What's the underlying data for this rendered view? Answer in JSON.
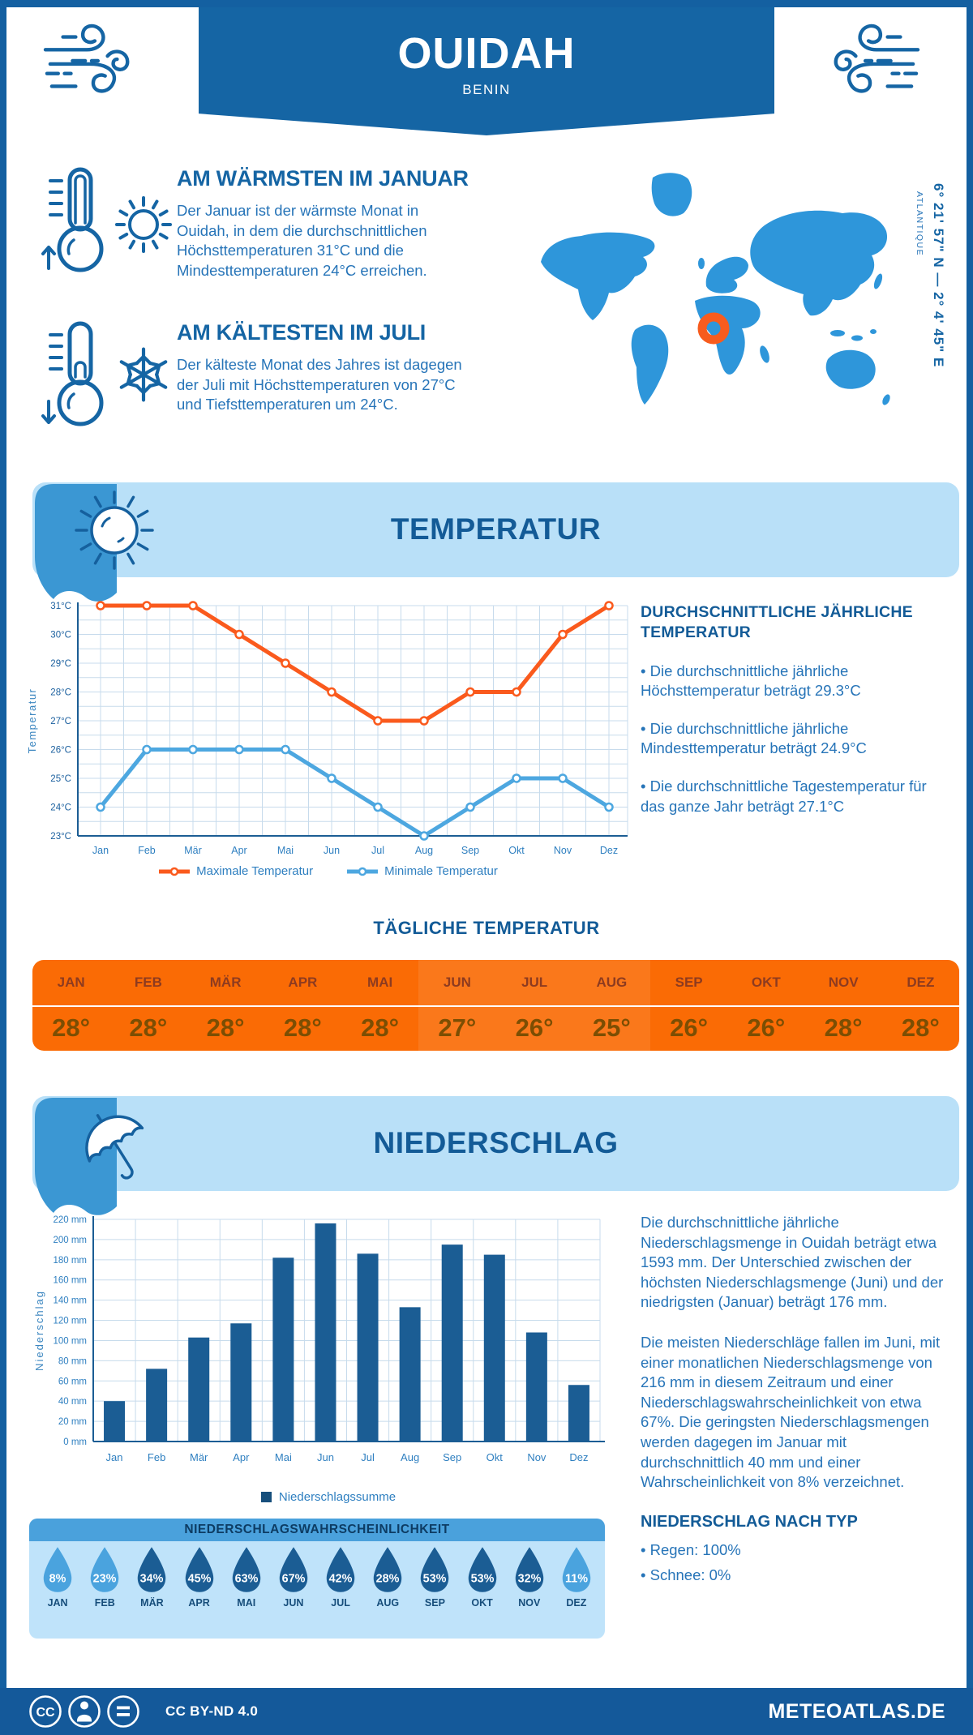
{
  "header": {
    "title": "OUIDAH",
    "subtitle": "BENIN"
  },
  "warmest": {
    "heading": "AM WÄRMSTEN IM JANUAR",
    "text": "Der Januar ist der wärmste Monat in Ouidah, in dem die durchschnittlichen Höchsttemperaturen 31°C und die Mindesttemperaturen 24°C erreichen."
  },
  "coldest": {
    "heading": "AM KÄLTESTEN IM JULI",
    "text": "Der kälteste Monat des Jahres ist dagegen der Juli mit Höchsttemperaturen von 27°C und Tiefsttemperaturen um 24°C."
  },
  "map": {
    "coordinates": "6° 21' 57\" N — 2° 4' 45\" E",
    "ocean": "ATLANTIQUE",
    "land_color": "#2e96da",
    "marker_color": "#f75c1e"
  },
  "sections": {
    "temperature": {
      "title": "TEMPERATUR"
    },
    "precipitation": {
      "title": "NIEDERSCHLAG"
    }
  },
  "annual_temperature": {
    "heading": "DURCHSCHNITTLICHE JÄHRLICHE TEMPERATUR",
    "bullets": [
      "• Die durchschnittliche jährliche Höchsttemperatur beträgt 29.3°C",
      "• Die durchschnittliche jährliche Mindesttemperatur beträgt 24.9°C",
      "• Die durchschnittliche Tagestemperatur für das ganze Jahr beträgt 27.1°C"
    ]
  },
  "daily_temperature": {
    "title": "TÄGLICHE TEMPERATUR",
    "months": [
      "JAN",
      "FEB",
      "MÄR",
      "APR",
      "MAI",
      "JUN",
      "JUL",
      "AUG",
      "SEP",
      "OKT",
      "NOV",
      "DEZ"
    ],
    "values": [
      "28°",
      "28°",
      "28°",
      "28°",
      "28°",
      "27°",
      "26°",
      "25°",
      "26°",
      "26°",
      "28°",
      "28°"
    ]
  },
  "precipitation_text": {
    "paragraph1": "Die durchschnittliche jährliche Niederschlagsmenge in Ouidah beträgt etwa 1593 mm. Der Unterschied zwischen der höchsten Niederschlagsmenge (Juni) und der niedrigsten (Januar) beträgt 176 mm.",
    "paragraph2": "Die meisten Niederschläge fallen im Juni, mit einer monatlichen Niederschlagsmenge von 216 mm in diesem Zeitraum und einer Niederschlagswahrscheinlichkeit von etwa 67%. Die geringsten Niederschlagsmengen werden dagegen im Januar mit durchschnittlich 40 mm und einer Wahrscheinlichkeit von 8% verzeichnet.",
    "type_heading": "NIEDERSCHLAG NACH TYP",
    "type_bullets": [
      "• Regen: 100%",
      "• Schnee: 0%"
    ]
  },
  "precipitation_probability": {
    "title": "NIEDERSCHLAGSWAHRSCHEINLICHKEIT",
    "months": [
      "JAN",
      "FEB",
      "MÄR",
      "APR",
      "MAI",
      "JUN",
      "JUL",
      "AUG",
      "SEP",
      "OKT",
      "NOV",
      "DEZ"
    ],
    "values": [
      8,
      23,
      34,
      45,
      63,
      67,
      42,
      28,
      53,
      53,
      32,
      11
    ],
    "light_color": "#4aa3de",
    "dark_color": "#1b5d94",
    "light_below": 25
  },
  "chart_data": [
    {
      "type": "line",
      "categories": [
        "Jan",
        "Feb",
        "Mär",
        "Apr",
        "Mai",
        "Jun",
        "Jul",
        "Aug",
        "Sep",
        "Okt",
        "Nov",
        "Dez"
      ],
      "series": [
        {
          "name": "Maximale Temperatur",
          "color": "#fa5a1d",
          "values": [
            31,
            31,
            31,
            30,
            29,
            28,
            27,
            27,
            28,
            28,
            30,
            31
          ]
        },
        {
          "name": "Minimale Temperatur",
          "color": "#4da7e0",
          "values": [
            24,
            26,
            26,
            26,
            26,
            25,
            24,
            23,
            24,
            25,
            25,
            24
          ]
        }
      ],
      "ylabel": "Temperatur",
      "ylim": [
        23,
        31
      ],
      "ytick_step": 1,
      "ytick_suffix": "°C",
      "grid": true,
      "legend_position": "bottom"
    },
    {
      "type": "bar",
      "categories": [
        "Jan",
        "Feb",
        "Mär",
        "Apr",
        "Mai",
        "Jun",
        "Jul",
        "Aug",
        "Sep",
        "Okt",
        "Nov",
        "Dez"
      ],
      "values": [
        40,
        72,
        103,
        117,
        182,
        216,
        186,
        133,
        195,
        185,
        108,
        56
      ],
      "bar_color": "#1b5d94",
      "ylabel": "Niederschlag",
      "ylim": [
        0,
        220
      ],
      "ytick_step": 20,
      "ytick_suffix": " mm",
      "grid": true,
      "legend": "Niederschlagssumme",
      "legend_position": "bottom"
    }
  ],
  "footer": {
    "license": "CC BY-ND 4.0",
    "brand": "METEOATLAS.DE"
  }
}
